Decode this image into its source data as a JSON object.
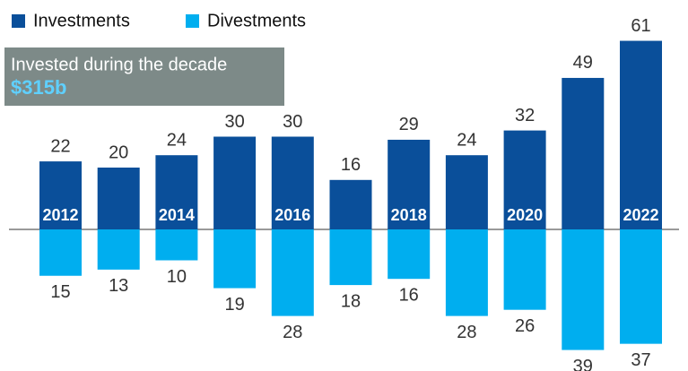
{
  "chart_data": {
    "type": "diverging-bar",
    "categories": [
      "2012",
      null,
      "2014",
      null,
      "2016",
      null,
      "2018",
      null,
      "2020",
      null,
      "2022"
    ],
    "series": [
      {
        "name": "Investments",
        "color": "#0a4f9a",
        "values": [
          22,
          20,
          24,
          30,
          30,
          16,
          29,
          24,
          32,
          49,
          61
        ]
      },
      {
        "name": "Divestments",
        "color": "#00aeef",
        "values": [
          15,
          13,
          10,
          19,
          28,
          18,
          16,
          28,
          26,
          39,
          37
        ]
      }
    ],
    "annotation": {
      "text": "Invested during the decade",
      "value": "$315b"
    }
  }
}
